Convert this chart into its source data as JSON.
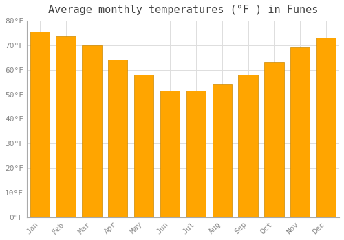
{
  "title": "Average monthly temperatures (°F ) in Funes",
  "months": [
    "Jan",
    "Feb",
    "Mar",
    "Apr",
    "May",
    "Jun",
    "Jul",
    "Aug",
    "Sep",
    "Oct",
    "Nov",
    "Dec"
  ],
  "values": [
    75.5,
    73.5,
    70.0,
    64.0,
    58.0,
    51.5,
    51.5,
    54.0,
    58.0,
    63.0,
    69.0,
    73.0
  ],
  "bar_color": "#FFA500",
  "bar_edge_color": "#CC8800",
  "ylim": [
    0,
    80
  ],
  "yticks": [
    0,
    10,
    20,
    30,
    40,
    50,
    60,
    70,
    80
  ],
  "background_color": "#FFFFFF",
  "grid_color": "#DDDDDD",
  "title_fontsize": 11,
  "tick_fontsize": 8,
  "tick_label_color": "#888888",
  "spine_color": "#AAAAAA"
}
